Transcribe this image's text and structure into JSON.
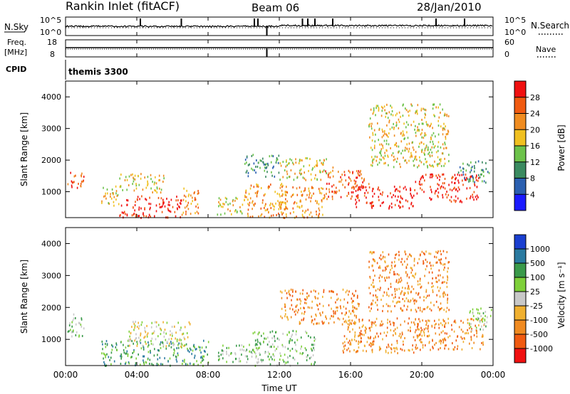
{
  "header": {
    "station": "Rankin Inlet (fitACF)",
    "beam": "Beam 06",
    "date": "28/Jan/2010"
  },
  "summary_panels": {
    "nsky_label": "N.Sky",
    "nsearch_label": "N.Search",
    "freq_label_top": "Freq.",
    "freq_label_unit": "[MHz]",
    "nave_label": "Nave",
    "cpid_label": "CPID",
    "cpid_value": "themis 3300",
    "noise_left_ticks": [
      "10^5",
      "10^0"
    ],
    "noise_right_ticks": [
      "10^5",
      "10^0"
    ],
    "freq_left_ticks": [
      "18",
      "8"
    ],
    "nave_right_ticks": [
      "60",
      "0"
    ]
  },
  "axes": {
    "x_ticks": [
      "00:00",
      "04:00",
      "08:00",
      "12:00",
      "16:00",
      "20:00",
      "00:00"
    ],
    "x_label": "Time UT",
    "y_ticks": [
      "1000",
      "2000",
      "3000",
      "4000"
    ],
    "y_label": "Slant Range [km]"
  },
  "power_colorbar": {
    "label": "Power [dB]",
    "ticks": [
      "4",
      "8",
      "12",
      "16",
      "20",
      "24",
      "28"
    ],
    "colors": [
      "#1a1aff",
      "#2a5fb0",
      "#3a8a60",
      "#6cc24a",
      "#f0c020",
      "#f08c20",
      "#f05a10",
      "#f01010"
    ]
  },
  "velocity_colorbar": {
    "label": "Velocity [m s⁻¹]",
    "ticks": [
      "1000",
      "500",
      "100",
      "25",
      "-25",
      "-100",
      "-500",
      "-1000"
    ],
    "colors": [
      "#1a3fd0",
      "#2a7aa0",
      "#3a9a4a",
      "#7ed03a",
      "#c8c8c8",
      "#f0b030",
      "#f08a20",
      "#f05a10",
      "#f01010"
    ]
  },
  "chart_data": {
    "type": "heatmap",
    "x_range_hours": [
      0,
      24
    ],
    "y_range_km": [
      180,
      4500
    ],
    "power_clusters": [
      {
        "t0": 0.1,
        "t1": 1.0,
        "r0": 1100,
        "r1": 1700,
        "level": 6
      },
      {
        "t0": 2.0,
        "t1": 3.0,
        "r0": 500,
        "r1": 1200,
        "level": 4
      },
      {
        "t0": 3.0,
        "t1": 6.5,
        "r0": 200,
        "r1": 900,
        "level": 7
      },
      {
        "t0": 3.0,
        "t1": 5.5,
        "r0": 1000,
        "r1": 1600,
        "level": 4
      },
      {
        "t0": 6.5,
        "t1": 7.5,
        "r0": 300,
        "r1": 1200,
        "level": 5
      },
      {
        "t0": 8.5,
        "t1": 10.0,
        "r0": 300,
        "r1": 900,
        "level": 4
      },
      {
        "t0": 10.0,
        "t1": 12.0,
        "r0": 1500,
        "r1": 2200,
        "level": 2
      },
      {
        "t0": 10.0,
        "t1": 12.5,
        "r0": 200,
        "r1": 1300,
        "level": 5
      },
      {
        "t0": 12.0,
        "t1": 15.0,
        "r0": 1400,
        "r1": 2100,
        "level": 4
      },
      {
        "t0": 12.0,
        "t1": 14.5,
        "r0": 200,
        "r1": 1200,
        "level": 5
      },
      {
        "t0": 14.5,
        "t1": 17.0,
        "r0": 800,
        "r1": 1700,
        "level": 6
      },
      {
        "t0": 16.0,
        "t1": 19.5,
        "r0": 500,
        "r1": 1200,
        "level": 7
      },
      {
        "t0": 19.5,
        "t1": 23.2,
        "r0": 700,
        "r1": 1600,
        "level": 7
      },
      {
        "t0": 22.0,
        "t1": 23.8,
        "r0": 1300,
        "r1": 2000,
        "level": 2
      },
      {
        "t0": 17.0,
        "t1": 21.5,
        "r0": 1800,
        "r1": 3800,
        "level": 4
      }
    ],
    "velocity_clusters": [
      {
        "t0": 0.1,
        "t1": 1.0,
        "r0": 1100,
        "r1": 1900,
        "level": 3
      },
      {
        "t0": 2.0,
        "t1": 8.0,
        "r0": 200,
        "r1": 1000,
        "level": 2
      },
      {
        "t0": 3.5,
        "t1": 7.0,
        "r0": 800,
        "r1": 1600,
        "level": 4
      },
      {
        "t0": 8.5,
        "t1": 10.5,
        "r0": 300,
        "r1": 900,
        "level": 3
      },
      {
        "t0": 10.5,
        "t1": 14.0,
        "r0": 200,
        "r1": 1300,
        "level": 3
      },
      {
        "t0": 12.0,
        "t1": 16.5,
        "r0": 1500,
        "r1": 2600,
        "level": 6
      },
      {
        "t0": 15.5,
        "t1": 20.0,
        "r0": 600,
        "r1": 1700,
        "level": 6
      },
      {
        "t0": 19.5,
        "t1": 23.5,
        "r0": 700,
        "r1": 1700,
        "level": 6
      },
      {
        "t0": 22.5,
        "t1": 23.9,
        "r0": 1300,
        "r1": 2000,
        "level": 3
      },
      {
        "t0": 17.0,
        "t1": 21.5,
        "r0": 1900,
        "r1": 3800,
        "level": 6
      }
    ],
    "noise_sky_spikes_h": [
      4.2,
      6.5,
      10.6,
      10.8,
      13.3,
      13.6,
      14.0,
      15.0,
      20.8,
      22.4
    ],
    "beam_gap_hour": 11.3
  }
}
